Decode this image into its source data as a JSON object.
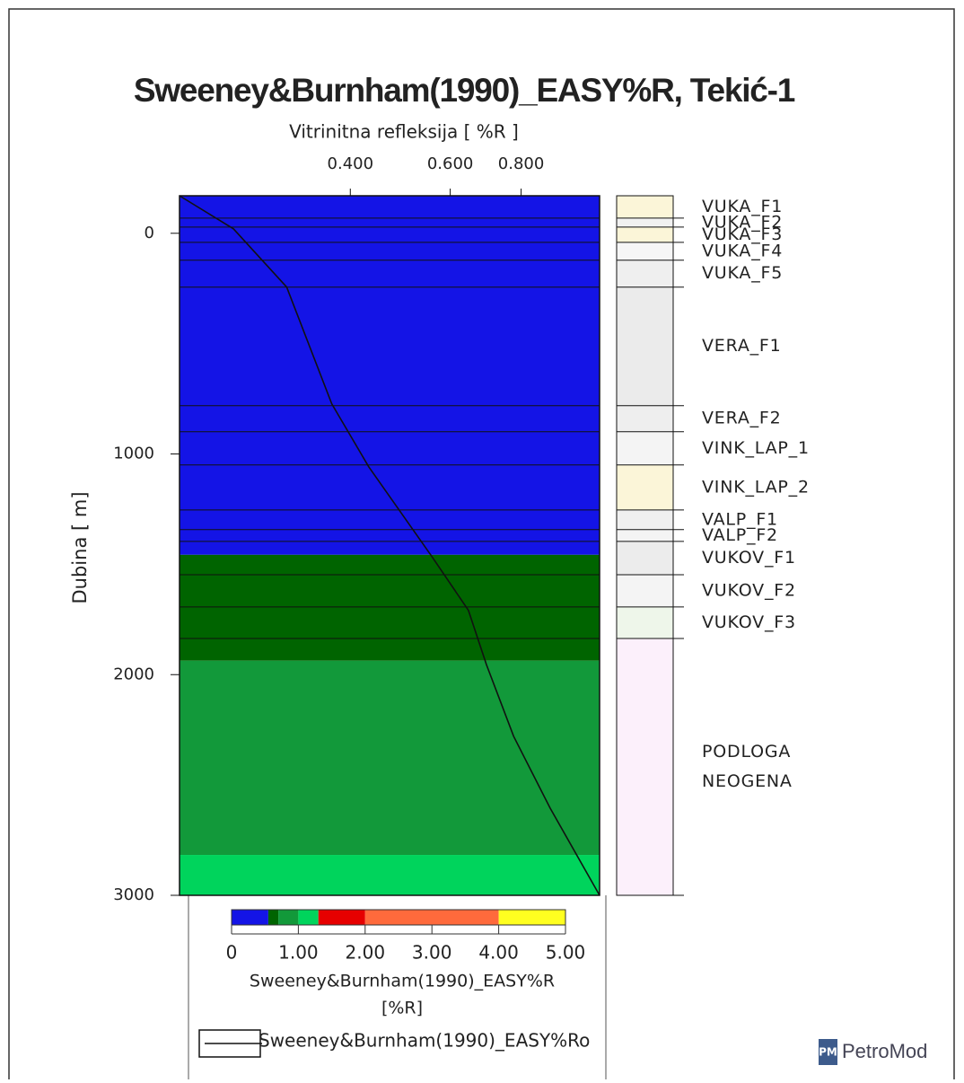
{
  "chart_data": {
    "type": "depth-log",
    "title": "Sweeney&Burnham(1990)_EASY%R, Tekić-1",
    "x_label": "Vitrinitna refleksija [ %R ]",
    "y_label": "Dubina [ m]",
    "x_log": true,
    "xlim": [
      0.2,
      1.1
    ],
    "xticks": [
      {
        "value": 0.4,
        "label": "0.400"
      },
      {
        "value": 0.6,
        "label": "0.600"
      },
      {
        "value": 0.8,
        "label": "0.800"
      }
    ],
    "ylim": [
      -170,
      3000
    ],
    "yticks": [
      0,
      1000,
      2000,
      3000
    ],
    "series": [
      {
        "name": "Sweeney&Burnham(1990)_EASY%Ro",
        "color": "#111111",
        "depth": [
          -170,
          -20,
          244,
          773,
          1058,
          1465,
          1709,
          1954,
          2279,
          2605,
          3000
        ],
        "values": [
          0.2,
          0.249,
          0.309,
          0.371,
          0.431,
          0.557,
          0.646,
          0.695,
          0.776,
          0.9,
          1.1
        ]
      }
    ],
    "bands": [
      {
        "top": -170,
        "color": "#1414e6"
      },
      {
        "top": 1457,
        "color": "#006400"
      },
      {
        "top": 1937,
        "color": "#12993a"
      },
      {
        "top": 2817,
        "color": "#00d45c"
      }
    ],
    "formations": [
      {
        "name": "VUKA_F1",
        "top": -170,
        "fill": "#fbf5d8"
      },
      {
        "name": "VUKA_F2",
        "top": -69,
        "fill": "#f1f1f1"
      },
      {
        "name": "VUKA_F3",
        "top": -28,
        "fill": "#fbf5d8"
      },
      {
        "name": "VUKA_F4",
        "top": 41,
        "fill": "#f6f6f6"
      },
      {
        "name": "VUKA_F5",
        "top": 122,
        "fill": "#efefef"
      },
      {
        "name": "VERA_F1",
        "top": 244,
        "fill": "#ebebeb"
      },
      {
        "name": "VERA_F2",
        "top": 781,
        "fill": "#eeeeee"
      },
      {
        "name": "VINK_LAP_1",
        "top": 899,
        "fill": "#f4f4f4"
      },
      {
        "name": "VINK_LAP_2",
        "top": 1050,
        "fill": "#fbf5d8"
      },
      {
        "name": "VALP_F1",
        "top": 1254,
        "fill": "#f0f0f0"
      },
      {
        "name": "VALP_F2",
        "top": 1343,
        "fill": "#f4f4f4"
      },
      {
        "name": "VUKOV_F1",
        "top": 1396,
        "fill": "#ececec"
      },
      {
        "name": "VUKOV_F2",
        "top": 1547,
        "fill": "#f4f4f4"
      },
      {
        "name": "VUKOV_F3",
        "top": 1693,
        "fill": "#eef6ea"
      },
      {
        "name": [
          "PODLOGA",
          "NEOGENA"
        ],
        "top": 1836,
        "fill": "#fcf0fb"
      }
    ],
    "colorbar": {
      "label": "Sweeney&Burnham(1990)_EASY%R",
      "unit": "[%R]",
      "bins": [
        0,
        0.55,
        0.7,
        1.0,
        1.3,
        2.0,
        4.0,
        5.0
      ],
      "colors": [
        "#1414e6",
        "#006400",
        "#12993a",
        "#00d45c",
        "#e60000",
        "#ff6a3c",
        "#ffff20"
      ],
      "xlim": [
        0,
        5
      ],
      "xticks": [
        0,
        {
          "value": 1,
          "label": "1.00"
        },
        {
          "value": 2,
          "label": "2.00"
        },
        {
          "value": 3,
          "label": "3.00"
        },
        {
          "value": 4,
          "label": "4.00"
        },
        {
          "value": 5,
          "label": "5.00"
        }
      ]
    }
  },
  "logo": {
    "icon": "PM",
    "text": "PetroMod"
  }
}
